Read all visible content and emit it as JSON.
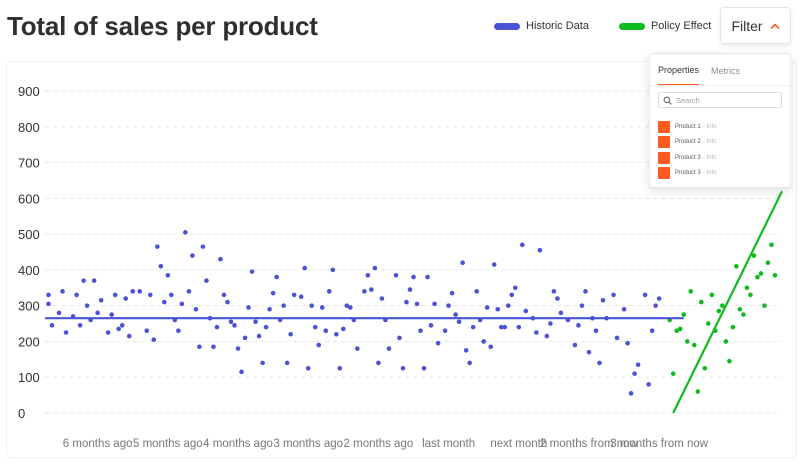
{
  "header": {
    "title": "Total of sales per product"
  },
  "legend": [
    {
      "label": "Historic Data",
      "color": "#4a52d6"
    },
    {
      "label": "Policy Effect",
      "color": "#0fba1f"
    }
  ],
  "filter": {
    "button_label": "Filter",
    "tabs": [
      {
        "label": "Properties",
        "active": true
      },
      {
        "label": "Metrics",
        "active": false
      }
    ],
    "search_placeholder": "Search",
    "items": [
      {
        "label": "Product 1",
        "info": "- Info"
      },
      {
        "label": "Product 2",
        "info": "- Info"
      },
      {
        "label": "Product 3",
        "info": "- Info"
      },
      {
        "label": "Product 3",
        "info": "- Info"
      }
    ]
  },
  "chart_data": {
    "type": "scatter",
    "grid": true,
    "ylim": [
      0,
      900
    ],
    "yticks": [
      0,
      100,
      200,
      300,
      400,
      500,
      600,
      700,
      800,
      900
    ],
    "x_axis_kind": "months, evenly spaced",
    "xlim": [
      -6.75,
      3.75
    ],
    "xticks": [
      {
        "value": -6,
        "label": "6 months ago"
      },
      {
        "value": -5,
        "label": "5 months ago"
      },
      {
        "value": -4,
        "label": "4 months ago"
      },
      {
        "value": -3,
        "label": "3 months ago"
      },
      {
        "value": -2,
        "label": "2 months ago"
      },
      {
        "value": -1,
        "label": "last month"
      },
      {
        "value": 0,
        "label": "next month"
      },
      {
        "value": 1,
        "label": "2 months from now"
      },
      {
        "value": 2,
        "label": "3 months from now"
      }
    ],
    "series": [
      {
        "name": "Historic Data",
        "color": "#4a52d6",
        "points": [
          [
            -6.7,
            330
          ],
          [
            -6.7,
            305
          ],
          [
            -6.65,
            245
          ],
          [
            -6.55,
            280
          ],
          [
            -6.5,
            340
          ],
          [
            -6.45,
            225
          ],
          [
            -6.35,
            270
          ],
          [
            -6.3,
            330
          ],
          [
            -6.25,
            245
          ],
          [
            -6.2,
            370
          ],
          [
            -6.15,
            300
          ],
          [
            -6.1,
            260
          ],
          [
            -6.05,
            370
          ],
          [
            -6.0,
            280
          ],
          [
            -5.95,
            315
          ],
          [
            -5.85,
            225
          ],
          [
            -5.8,
            275
          ],
          [
            -5.75,
            330
          ],
          [
            -5.7,
            235
          ],
          [
            -5.65,
            245
          ],
          [
            -5.6,
            320
          ],
          [
            -5.55,
            215
          ],
          [
            -5.5,
            340
          ],
          [
            -5.4,
            340
          ],
          [
            -5.3,
            230
          ],
          [
            -5.25,
            330
          ],
          [
            -5.2,
            205
          ],
          [
            -5.15,
            465
          ],
          [
            -5.1,
            410
          ],
          [
            -5.05,
            310
          ],
          [
            -5.0,
            385
          ],
          [
            -4.95,
            330
          ],
          [
            -4.9,
            260
          ],
          [
            -4.85,
            230
          ],
          [
            -4.8,
            305
          ],
          [
            -4.75,
            505
          ],
          [
            -4.7,
            340
          ],
          [
            -4.65,
            440
          ],
          [
            -4.6,
            290
          ],
          [
            -4.55,
            185
          ],
          [
            -4.5,
            465
          ],
          [
            -4.45,
            370
          ],
          [
            -4.4,
            265
          ],
          [
            -4.35,
            185
          ],
          [
            -4.3,
            240
          ],
          [
            -4.25,
            430
          ],
          [
            -4.2,
            330
          ],
          [
            -4.15,
            310
          ],
          [
            -4.1,
            255
          ],
          [
            -4.05,
            245
          ],
          [
            -4.0,
            180
          ],
          [
            -3.95,
            115
          ],
          [
            -3.9,
            210
          ],
          [
            -3.85,
            295
          ],
          [
            -3.8,
            395
          ],
          [
            -3.75,
            255
          ],
          [
            -3.7,
            215
          ],
          [
            -3.65,
            140
          ],
          [
            -3.6,
            240
          ],
          [
            -3.55,
            290
          ],
          [
            -3.5,
            335
          ],
          [
            -3.45,
            380
          ],
          [
            -3.4,
            260
          ],
          [
            -3.35,
            300
          ],
          [
            -3.3,
            140
          ],
          [
            -3.25,
            220
          ],
          [
            -3.2,
            330
          ],
          [
            -3.1,
            325
          ],
          [
            -3.05,
            405
          ],
          [
            -3.0,
            125
          ],
          [
            -2.95,
            300
          ],
          [
            -2.9,
            240
          ],
          [
            -2.85,
            190
          ],
          [
            -2.8,
            295
          ],
          [
            -2.75,
            230
          ],
          [
            -2.7,
            340
          ],
          [
            -2.65,
            400
          ],
          [
            -2.6,
            220
          ],
          [
            -2.55,
            125
          ],
          [
            -2.5,
            235
          ],
          [
            -2.45,
            300
          ],
          [
            -2.4,
            295
          ],
          [
            -2.35,
            260
          ],
          [
            -2.3,
            180
          ],
          [
            -2.2,
            340
          ],
          [
            -2.15,
            385
          ],
          [
            -2.1,
            345
          ],
          [
            -2.05,
            405
          ],
          [
            -2.0,
            140
          ],
          [
            -1.95,
            320
          ],
          [
            -1.9,
            260
          ],
          [
            -1.85,
            180
          ],
          [
            -1.75,
            385
          ],
          [
            -1.7,
            210
          ],
          [
            -1.65,
            125
          ],
          [
            -1.6,
            310
          ],
          [
            -1.55,
            345
          ],
          [
            -1.5,
            380
          ],
          [
            -1.45,
            305
          ],
          [
            -1.4,
            230
          ],
          [
            -1.35,
            125
          ],
          [
            -1.3,
            380
          ],
          [
            -1.25,
            245
          ],
          [
            -1.2,
            305
          ],
          [
            -1.15,
            195
          ],
          [
            -1.05,
            230
          ],
          [
            -1.0,
            300
          ],
          [
            -0.95,
            335
          ],
          [
            -0.9,
            275
          ],
          [
            -0.85,
            255
          ],
          [
            -0.8,
            420
          ],
          [
            -0.75,
            175
          ],
          [
            -0.7,
            140
          ],
          [
            -0.65,
            240
          ],
          [
            -0.6,
            340
          ],
          [
            -0.55,
            260
          ],
          [
            -0.5,
            200
          ],
          [
            -0.45,
            295
          ],
          [
            -0.4,
            185
          ],
          [
            -0.35,
            415
          ],
          [
            -0.3,
            290
          ],
          [
            -0.25,
            240
          ],
          [
            -0.2,
            240
          ],
          [
            -0.15,
            300
          ],
          [
            -0.1,
            330
          ],
          [
            -0.05,
            350
          ],
          [
            0.0,
            240
          ],
          [
            0.05,
            470
          ],
          [
            0.1,
            285
          ],
          [
            0.2,
            265
          ],
          [
            0.25,
            225
          ],
          [
            0.3,
            455
          ],
          [
            0.4,
            215
          ],
          [
            0.45,
            250
          ],
          [
            0.5,
            340
          ],
          [
            0.55,
            320
          ],
          [
            0.6,
            280
          ],
          [
            0.7,
            260
          ],
          [
            0.8,
            190
          ],
          [
            0.85,
            245
          ],
          [
            0.9,
            300
          ],
          [
            0.95,
            340
          ],
          [
            1.0,
            170
          ],
          [
            1.05,
            265
          ],
          [
            1.1,
            230
          ],
          [
            1.15,
            140
          ],
          [
            1.2,
            315
          ],
          [
            1.25,
            265
          ],
          [
            1.35,
            330
          ],
          [
            1.4,
            210
          ],
          [
            1.5,
            290
          ],
          [
            1.55,
            195
          ],
          [
            1.6,
            55
          ],
          [
            1.65,
            110
          ],
          [
            1.7,
            135
          ],
          [
            1.8,
            330
          ],
          [
            1.85,
            80
          ],
          [
            1.9,
            230
          ],
          [
            1.95,
            300
          ],
          [
            2.0,
            320
          ]
        ],
        "fit_line": {
          "x": [
            -6.75,
            2.35
          ],
          "y": [
            265,
            265
          ]
        }
      },
      {
        "name": "Policy Effect",
        "color": "#0fba1f",
        "points": [
          [
            2.15,
            260
          ],
          [
            2.2,
            110
          ],
          [
            2.25,
            230
          ],
          [
            2.3,
            235
          ],
          [
            2.35,
            275
          ],
          [
            2.4,
            200
          ],
          [
            2.45,
            340
          ],
          [
            2.5,
            190
          ],
          [
            2.55,
            60
          ],
          [
            2.6,
            310
          ],
          [
            2.65,
            125
          ],
          [
            2.7,
            250
          ],
          [
            2.75,
            330
          ],
          [
            2.8,
            230
          ],
          [
            2.85,
            285
          ],
          [
            2.9,
            300
          ],
          [
            2.95,
            200
          ],
          [
            3.0,
            145
          ],
          [
            3.05,
            240
          ],
          [
            3.1,
            410
          ],
          [
            3.15,
            290
          ],
          [
            3.2,
            275
          ],
          [
            3.25,
            350
          ],
          [
            3.3,
            330
          ],
          [
            3.35,
            440
          ],
          [
            3.4,
            380
          ],
          [
            3.45,
            390
          ],
          [
            3.5,
            300
          ],
          [
            3.55,
            420
          ],
          [
            3.6,
            470
          ],
          [
            3.65,
            385
          ]
        ],
        "fit_line": {
          "x": [
            2.2,
            3.75
          ],
          "y": [
            0,
            620
          ]
        }
      }
    ]
  }
}
